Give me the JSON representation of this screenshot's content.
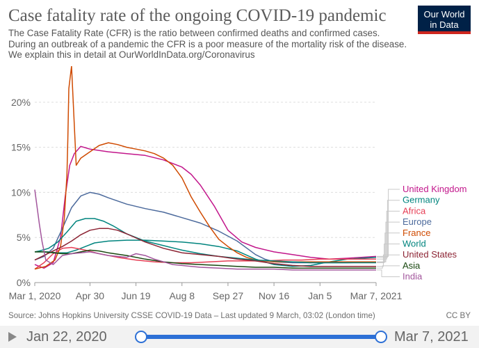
{
  "header": {
    "title": "Case fatality rate of the ongoing COVID-19 pandemic",
    "subtitle": "The Case Fatality Rate (CFR) is the ratio between confirmed deaths and confirmed cases. During an outbreak of a pandemic the CFR is a poor measure of the mortality risk of the disease. We explain this in detail at OurWorldInData.org/Coronavirus",
    "logo_line1": "Our World",
    "logo_line2": "in Data"
  },
  "footer": {
    "source": "Source: Johns Hopkins University CSSE COVID-19 Data – Last updated 9 March, 03:02 (London time)",
    "license": "CC BY"
  },
  "timeline": {
    "start_label": "Jan 22, 2020",
    "end_label": "Mar 7, 2021"
  },
  "colors": {
    "grid": "#dddddd",
    "axis_text": "#666666",
    "timeline_accent": "#2d70d6"
  },
  "chart_data": {
    "type": "line",
    "title": "Case fatality rate of the ongoing COVID-19 pandemic",
    "xlabel": "",
    "ylabel": "",
    "y_unit": "%",
    "ylim": [
      0,
      24
    ],
    "xlim_days": [
      0,
      371
    ],
    "x_ticks": [
      {
        "label": "Mar 1, 2020",
        "day": 0
      },
      {
        "label": "Apr 30",
        "day": 60
      },
      {
        "label": "Jun 19",
        "day": 110
      },
      {
        "label": "Aug 8",
        "day": 160
      },
      {
        "label": "Sep 27",
        "day": 210
      },
      {
        "label": "Nov 16",
        "day": 260
      },
      {
        "label": "Jan 5",
        "day": 310
      },
      {
        "label": "Mar 7, 2021",
        "day": 371
      }
    ],
    "y_ticks": [
      {
        "label": "0%",
        "value": 0
      },
      {
        "label": "5%",
        "value": 5
      },
      {
        "label": "10%",
        "value": 10
      },
      {
        "label": "15%",
        "value": 15
      },
      {
        "label": "20%",
        "value": 20
      }
    ],
    "x_day_definition": "days since Mar 1, 2020",
    "series": [
      {
        "name": "United Kingdom",
        "color": "#c2168b",
        "x": [
          0,
          10,
          20,
          28,
          33,
          38,
          43,
          50,
          60,
          80,
          100,
          120,
          140,
          160,
          170,
          180,
          195,
          210,
          225,
          240,
          260,
          280,
          300,
          320,
          340,
          371
        ],
        "y": [
          2,
          1.6,
          2.2,
          5,
          9.5,
          13,
          14.3,
          15.1,
          14.8,
          14.5,
          14.3,
          14.1,
          13.6,
          12.8,
          12,
          10.8,
          8.5,
          5.8,
          4.5,
          3.9,
          3.4,
          3.1,
          2.8,
          2.6,
          2.7,
          2.9
        ]
      },
      {
        "name": "Germany",
        "color": "#00847e",
        "x": [
          0,
          15,
          25,
          35,
          45,
          55,
          65,
          80,
          100,
          120,
          140,
          160,
          180,
          200,
          220,
          240,
          260,
          280,
          300,
          320,
          340,
          371
        ],
        "y": [
          3.4,
          3.4,
          3.3,
          3.3,
          3.6,
          4.0,
          4.4,
          4.6,
          4.7,
          4.7,
          4.6,
          4.5,
          4.3,
          4.0,
          3.5,
          2.6,
          2.0,
          1.8,
          1.9,
          2.3,
          2.6,
          2.8
        ]
      },
      {
        "name": "Africa",
        "color": "#e63d54",
        "x": [
          0,
          10,
          20,
          30,
          40,
          55,
          70,
          90,
          110,
          130,
          150,
          170,
          190,
          210,
          230,
          250,
          270,
          290,
          310,
          330,
          350,
          371
        ],
        "y": [
          1.5,
          2.2,
          3.2,
          3.8,
          3.9,
          3.6,
          3.2,
          2.8,
          2.5,
          2.3,
          2.2,
          2.2,
          2.3,
          2.4,
          2.4,
          2.4,
          2.5,
          2.5,
          2.6,
          2.6,
          2.6,
          2.6
        ]
      },
      {
        "name": "Europe",
        "color": "#4c6a9c",
        "x": [
          0,
          10,
          20,
          30,
          40,
          50,
          60,
          70,
          80,
          100,
          120,
          140,
          160,
          180,
          200,
          220,
          240,
          250,
          260,
          280,
          300,
          320,
          340,
          371
        ],
        "y": [
          2.5,
          2.9,
          3.8,
          6.0,
          8.3,
          9.6,
          10.0,
          9.8,
          9.4,
          8.7,
          8.2,
          7.8,
          7.2,
          6.6,
          5.7,
          4.6,
          3.1,
          2.6,
          2.3,
          2.2,
          2.2,
          2.2,
          2.2,
          2.3
        ]
      },
      {
        "name": "France",
        "color": "#cf4a00",
        "x": [
          0,
          12,
          22,
          28,
          32,
          35,
          36,
          37,
          40,
          45,
          50,
          60,
          70,
          80,
          90,
          100,
          110,
          120,
          130,
          140,
          150,
          160,
          170,
          180,
          190,
          200,
          210,
          220,
          230,
          240,
          260,
          280,
          300,
          320,
          340,
          371
        ],
        "y": [
          1.5,
          1.8,
          2.5,
          4,
          7,
          12,
          16,
          21.5,
          24,
          13,
          13.8,
          14.5,
          15.2,
          15.5,
          15.3,
          15,
          14.8,
          14.6,
          14.3,
          13.8,
          13,
          11.6,
          9.5,
          7.8,
          6.2,
          4.8,
          4.0,
          3.3,
          2.8,
          2.5,
          2.3,
          2.3,
          2.3,
          2.3,
          2.3,
          2.3
        ]
      },
      {
        "name": "World",
        "color": "#00847e",
        "x": [
          0,
          5,
          15,
          25,
          35,
          45,
          55,
          65,
          75,
          85,
          100,
          120,
          140,
          160,
          180,
          200,
          220,
          240,
          260,
          280,
          300,
          320,
          340,
          371
        ],
        "y": [
          3.4,
          3.5,
          3.8,
          4.5,
          5.6,
          6.8,
          7.1,
          7.1,
          6.8,
          6.3,
          5.4,
          4.6,
          4.1,
          3.6,
          3.2,
          2.9,
          2.7,
          2.5,
          2.4,
          2.3,
          2.2,
          2.2,
          2.2,
          2.2
        ]
      },
      {
        "name": "United States",
        "color": "#8c2333",
        "x": [
          0,
          10,
          20,
          30,
          40,
          50,
          60,
          70,
          80,
          90,
          100,
          120,
          140,
          160,
          180,
          200,
          220,
          240,
          260,
          280,
          300,
          320,
          340,
          371
        ],
        "y": [
          2.5,
          3.0,
          3.5,
          4.0,
          4.6,
          5.3,
          5.8,
          6.0,
          6.0,
          5.8,
          5.4,
          4.5,
          3.8,
          3.3,
          3.1,
          2.9,
          2.6,
          2.4,
          2.1,
          1.9,
          1.8,
          1.8,
          1.8,
          1.8
        ]
      },
      {
        "name": "Asia",
        "color": "#18470f",
        "x": [
          0,
          10,
          20,
          30,
          40,
          50,
          60,
          70,
          80,
          100,
          120,
          140,
          160,
          180,
          200,
          220,
          240,
          260,
          280,
          300,
          320,
          340,
          371
        ],
        "y": [
          3.4,
          3.4,
          3.3,
          3.2,
          3.2,
          3.4,
          3.6,
          3.5,
          3.3,
          3.0,
          2.6,
          2.3,
          2.1,
          2.0,
          1.9,
          1.8,
          1.7,
          1.7,
          1.6,
          1.6,
          1.6,
          1.6,
          1.6
        ]
      },
      {
        "name": "India",
        "color": "#a2559c",
        "x": [
          0,
          5,
          8,
          12,
          20,
          25,
          30,
          40,
          50,
          60,
          70,
          80,
          90,
          100,
          110,
          120,
          130,
          140,
          150,
          160,
          170,
          180,
          200,
          220,
          240,
          260,
          280,
          300,
          320,
          340,
          371
        ],
        "y": [
          10.3,
          6.5,
          4.5,
          2.5,
          2.0,
          2.5,
          3.0,
          3.2,
          3.3,
          3.4,
          3.2,
          3.0,
          2.9,
          2.8,
          3.2,
          3.0,
          2.6,
          2.3,
          2.0,
          1.9,
          1.8,
          1.7,
          1.6,
          1.5,
          1.5,
          1.5,
          1.4,
          1.4,
          1.4,
          1.4,
          1.4
        ]
      }
    ]
  }
}
